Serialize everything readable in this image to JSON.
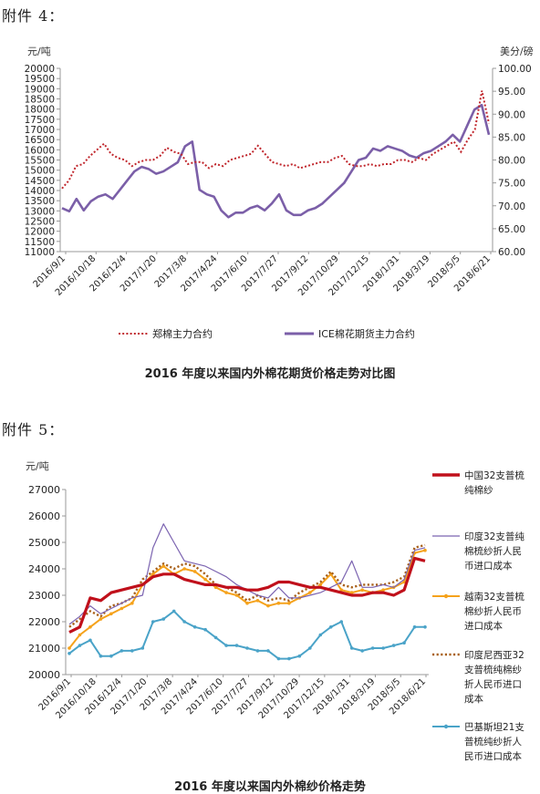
{
  "headings": {
    "first": "附件 4：",
    "second": "附件 5："
  },
  "chart_data": [
    {
      "type": "line",
      "title": "2016 年度以来国内外棉花期货价格走势对比图",
      "left_unit": "元/吨",
      "right_unit": "美分/磅",
      "yticks_left": [
        "20000",
        "19500",
        "19000",
        "18500",
        "18000",
        "17500",
        "17000",
        "16500",
        "16000",
        "15500",
        "15000",
        "14500",
        "14000",
        "13500",
        "13000",
        "12500",
        "12000",
        "11500",
        "11000"
      ],
      "yticks_right": [
        "100.00",
        "95.00",
        "90.00",
        "85.00",
        "80.00",
        "75.00",
        "70.00",
        "65.00",
        "60.00"
      ],
      "xlabels": [
        "2016/9/1",
        "2016/10/18",
        "2016/12/4",
        "2017/1/20",
        "2017/3/8",
        "2017/4/24",
        "2017/6/10",
        "2017/7/27",
        "2017/9/12",
        "2017/10/29",
        "2017/12/15",
        "2018/1/31",
        "2018/3/19",
        "2018/5/5",
        "2018/6/21"
      ],
      "ylim_left": [
        11000,
        20000
      ],
      "ylim_right": [
        60,
        100
      ],
      "legend": [
        "郑棉主力合约",
        "ICE棉花期货主力合约"
      ],
      "colors": {
        "zheng": "#c0262c",
        "ice": "#7b5fa8"
      },
      "series": [
        {
          "name": "郑棉主力合约",
          "axis": "left",
          "style": "dotted",
          "values": [
            14100,
            14500,
            15200,
            15300,
            15700,
            16000,
            16300,
            15800,
            15600,
            15500,
            15200,
            15400,
            15500,
            15500,
            15700,
            16100,
            15900,
            15800,
            15300,
            15400,
            15400,
            15100,
            15300,
            15200,
            15500,
            15600,
            15700,
            15800,
            16200,
            15800,
            15400,
            15300,
            15200,
            15300,
            15100,
            15200,
            15300,
            15400,
            15400,
            15600,
            15700,
            15300,
            15200,
            15200,
            15300,
            15200,
            15300,
            15300,
            15500,
            15500,
            15400,
            15600,
            15500,
            15800,
            16000,
            16200,
            16400,
            15900,
            16500,
            17000,
            18900,
            17300
          ]
        },
        {
          "name": "ICE棉花期货主力合约",
          "axis": "right",
          "style": "solid",
          "values": [
            69.5,
            68.8,
            71.5,
            69.0,
            71.0,
            72.0,
            72.5,
            71.5,
            73.5,
            75.5,
            77.5,
            78.5,
            78.0,
            77.0,
            77.5,
            78.5,
            79.5,
            83.0,
            84.0,
            73.5,
            72.5,
            72.0,
            69.0,
            67.5,
            68.5,
            68.5,
            69.5,
            70.0,
            69.0,
            70.5,
            72.5,
            69.0,
            68.0,
            68.0,
            69.0,
            69.5,
            70.5,
            72.0,
            73.5,
            75.0,
            77.5,
            80.0,
            80.5,
            82.5,
            82.0,
            83.0,
            82.5,
            82.0,
            81.0,
            80.5,
            81.5,
            82.0,
            83.0,
            84.0,
            85.5,
            84.0,
            87.5,
            91.0,
            92.0,
            85.5
          ]
        }
      ]
    },
    {
      "type": "line",
      "title": "2016 年度以来国内外棉纱价格走势",
      "left_unit": "元/吨",
      "yticks": [
        "27000",
        "26000",
        "25000",
        "24000",
        "23000",
        "22000",
        "21000",
        "20000"
      ],
      "xlabels": [
        "2016/9/1",
        "2016/10/18",
        "2016/12/4",
        "2017/1/20",
        "2017/3/8",
        "2017/4/24",
        "2017/6/10",
        "2017/7/27",
        "2017/9/12",
        "2017/10/29",
        "2017/12/15",
        "2018/1/31",
        "2018/3/19",
        "2018/5/5",
        "2018/6/21"
      ],
      "ylim": [
        20000,
        27000
      ],
      "series": [
        {
          "name": "中国32支普梳纯棉纱",
          "color": "#c0101b",
          "style": "thick",
          "values": [
            21600,
            21800,
            22900,
            22800,
            23100,
            23200,
            23300,
            23400,
            23700,
            23800,
            23800,
            23600,
            23500,
            23400,
            23400,
            23300,
            23300,
            23200,
            23200,
            23300,
            23500,
            23500,
            23400,
            23300,
            23300,
            23200,
            23100,
            23000,
            23000,
            23100,
            23100,
            23000,
            23200,
            24400,
            24300
          ]
        },
        {
          "name": "印度32支普纯棉梳纱折人民币进口成本",
          "color": "#7b63b0",
          "style": "thin",
          "values": [
            21900,
            22200,
            22600,
            22300,
            22500,
            22700,
            22900,
            23000,
            24800,
            25700,
            25000,
            24300,
            24200,
            24100,
            23900,
            23700,
            23400,
            23200,
            23000,
            22900,
            23300,
            22900,
            22900,
            23000,
            23100,
            23300,
            23500,
            24300,
            23300,
            23300,
            23400,
            23300,
            23600,
            24700,
            24800
          ]
        },
        {
          "name": "越南32支普梳棉纱折人民币进口成本",
          "color": "#f5a21b",
          "style": "marker",
          "values": [
            21000,
            21500,
            21800,
            22100,
            22300,
            22500,
            22700,
            23400,
            23800,
            24100,
            23800,
            24000,
            23900,
            23600,
            23300,
            23100,
            23000,
            22700,
            22800,
            22600,
            22700,
            22700,
            22900,
            23100,
            23400,
            23800,
            23200,
            23100,
            23200,
            23100,
            23200,
            23300,
            23500,
            24600,
            24700
          ]
        },
        {
          "name": "印度尼西亚32支普梳纯棉纱折人民币进口成本",
          "color": "#a8601a",
          "style": "dotted",
          "values": [
            21800,
            22100,
            22400,
            22200,
            22600,
            22700,
            22900,
            23600,
            23900,
            24200,
            24000,
            24200,
            24100,
            23800,
            23400,
            23300,
            23100,
            22800,
            23000,
            22800,
            22900,
            22800,
            23100,
            23300,
            23500,
            23900,
            23400,
            23300,
            23400,
            23400,
            23400,
            23500,
            23700,
            24800,
            24900
          ]
        },
        {
          "name": "巴基斯坦21支普梳纯纱折人民币进口成本",
          "color": "#4aa3c8",
          "style": "marker",
          "values": [
            20800,
            21100,
            21300,
            20700,
            20700,
            20900,
            20900,
            21000,
            22000,
            22100,
            22400,
            22000,
            21800,
            21700,
            21400,
            21100,
            21100,
            21000,
            20900,
            20900,
            20600,
            20600,
            20700,
            21000,
            21500,
            21800,
            22000,
            21000,
            20900,
            21000,
            21000,
            21100,
            21200,
            21800,
            21800
          ]
        }
      ]
    }
  ]
}
